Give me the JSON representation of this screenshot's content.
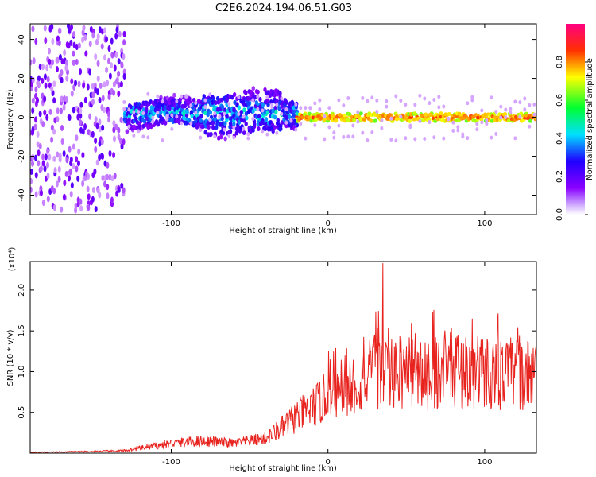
{
  "title": "C2E6.2024.194.06.51.G03",
  "chart_data": [
    {
      "type": "heatmap",
      "xlabel": "Height of straight line (km)",
      "ylabel": "Frequency (Hz)",
      "xlim": [
        -190,
        133
      ],
      "ylim": [
        -50,
        48
      ],
      "xticks": [
        -100,
        0,
        100
      ],
      "yticks": [
        -40,
        -20,
        0,
        20,
        40
      ],
      "colorbar": {
        "label": "Normalized spectral amplitude",
        "range": [
          0.0,
          1.0
        ],
        "ticks": [
          "0.0",
          "0.2",
          "0.4",
          "0.6",
          "0.8"
        ],
        "colors": [
          "#ffffff",
          "#8a00ff",
          "#2000ff",
          "#00e0ff",
          "#00ff30",
          "#ffff00",
          "#ff3000",
          "#ff0080"
        ]
      },
      "bands": [
        {
          "x_range": [
            -190,
            -130
          ],
          "freq_center": 0,
          "freq_halfwidth": 48,
          "amplitude": 0.12
        },
        {
          "x_range": [
            -130,
            -20
          ],
          "freq_center": 2,
          "freq_halfwidth": 7,
          "amplitude": 0.3
        },
        {
          "x_range": [
            -20,
            133
          ],
          "freq_center": 0,
          "freq_halfwidth": 2,
          "amplitude": 0.9
        }
      ]
    },
    {
      "type": "line",
      "xlabel": "Height of straight line (km)",
      "ylabel": "SNR (10 * v/v)",
      "yscale_note": "(x10⁴)",
      "xlim": [
        -190,
        133
      ],
      "ylim": [
        0,
        2.35
      ],
      "xticks": [
        -100,
        0,
        100
      ],
      "yticks": [
        "0.5",
        "1.0",
        "1.5",
        "2.0"
      ],
      "color": "#e8231e",
      "x": [
        -190,
        -150,
        -130,
        -120,
        -100,
        -80,
        -60,
        -40,
        -30,
        -20,
        -10,
        0,
        10,
        20,
        30,
        40,
        50,
        60,
        70,
        80,
        90,
        100,
        110,
        120,
        133
      ],
      "values": [
        0.01,
        0.02,
        0.03,
        0.06,
        0.12,
        0.15,
        0.12,
        0.18,
        0.3,
        0.45,
        0.55,
        0.7,
        0.8,
        0.85,
        1.0,
        0.95,
        1.0,
        0.95,
        1.0,
        1.05,
        0.95,
        1.0,
        0.95,
        1.0,
        0.9
      ],
      "peak": {
        "x": 35,
        "y": 2.33
      }
    }
  ]
}
